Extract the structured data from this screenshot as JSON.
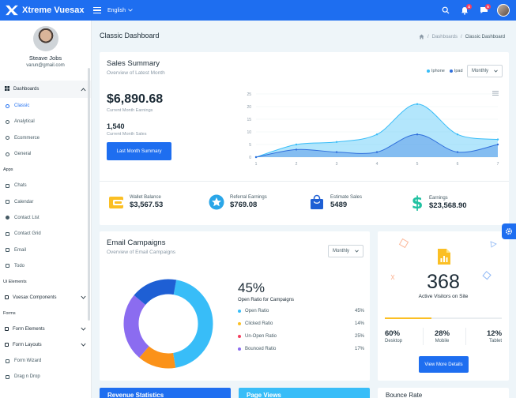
{
  "app": {
    "name": "Xtreme Vuesax",
    "language": "English"
  },
  "topbar": {
    "notif_count": "4",
    "msg_count": "5"
  },
  "user": {
    "name": "Steave Jobs",
    "email": "varun@gmail.com"
  },
  "sidebar": {
    "dashboards": "Dashboards",
    "dash_items": [
      "Classic",
      "Analytical",
      "Ecommerce",
      "General"
    ],
    "apps_section": "Apps",
    "app_items": [
      "Chats",
      "Calendar",
      "Contact List",
      "Contact Grid",
      "Email",
      "Todo"
    ],
    "ui_section": "Ui Elements",
    "vuesax": "Vuesax Components",
    "forms_section": "Forms",
    "form_groups": [
      "Form Elements",
      "Form Layouts"
    ],
    "form_items": [
      "Form Wizard",
      "Drag n Drop"
    ]
  },
  "page": {
    "title": "Classic Dashboard",
    "breadcrumb": [
      "Dashboards",
      "Classic Dashboard"
    ]
  },
  "sales": {
    "title": "Sales Summary",
    "subtitle": "Overview of Latest Month",
    "legend": [
      "Iphone",
      "Ipad"
    ],
    "period": "Monthly",
    "earnings_value": "$6,890.68",
    "earnings_label": "Current Month Earnings",
    "sales_value": "1,540",
    "sales_label": "Current Month Sales",
    "button": "Last Month Summary"
  },
  "chart_data": {
    "type": "area",
    "x": [
      1,
      2,
      3,
      4,
      5,
      6,
      7
    ],
    "ylim": [
      0,
      25
    ],
    "yticks": [
      0,
      5,
      10,
      15,
      20,
      25
    ],
    "series": [
      {
        "name": "Iphone",
        "values": [
          0,
          5,
          6,
          9,
          21,
          9,
          7
        ],
        "color": "#38bdf8"
      },
      {
        "name": "Ipad",
        "values": [
          0,
          3,
          2,
          2,
          9,
          2,
          5
        ],
        "color": "#2f6fdc"
      }
    ]
  },
  "stats": [
    {
      "label": "Wallet Balance",
      "value": "$3,567.53",
      "icon": "wallet-icon",
      "color": "#fbbf24"
    },
    {
      "label": "Referral Earnings",
      "value": "$769.08",
      "icon": "star-badge-icon",
      "color": "#2aa6e8"
    },
    {
      "label": "Estimate Sales",
      "value": "5489",
      "icon": "shopping-bag-icon",
      "color": "#1e5fd4"
    },
    {
      "label": "Earnings",
      "value": "$23,568.90",
      "icon": "dollar-icon",
      "color": "#21c1a1"
    }
  ],
  "email": {
    "title": "Email Campaigns",
    "subtitle": "Overview of Email Campaigns",
    "period": "Monthly",
    "big_pct": "45%",
    "big_label": "Open Ratio for Campaigns",
    "items": [
      {
        "label": "Open Ratio",
        "pct": "45%",
        "value": 45,
        "color": "#38bdf8"
      },
      {
        "label": "Clicked Ratio",
        "pct": "14%",
        "value": 14,
        "color": "#fb9219"
      },
      {
        "label": "Un-Open Ratio",
        "pct": "25%",
        "value": 25,
        "color": "#8b6cf0"
      },
      {
        "label": "Bounced Ratio",
        "pct": "17%",
        "value": 17,
        "color": "#1e5fd4"
      }
    ],
    "legend_colors": [
      "#38bdf8",
      "#fbbf24",
      "#f43f5e",
      "#8b6cf0"
    ]
  },
  "visitors": {
    "value": "368",
    "label": "Active Visitors on Site",
    "progress": 0.4,
    "devices": [
      {
        "pct": "60%",
        "name": "Desktop"
      },
      {
        "pct": "28%",
        "name": "Mobile"
      },
      {
        "pct": "12%",
        "name": "Tablet"
      }
    ],
    "button": "View More Details"
  },
  "bottom": [
    "Revenue Statistics",
    "Page Views",
    "Bounce Rate"
  ],
  "colors": {
    "primary": "#1e6ef0",
    "accent": "#38bdf8"
  }
}
